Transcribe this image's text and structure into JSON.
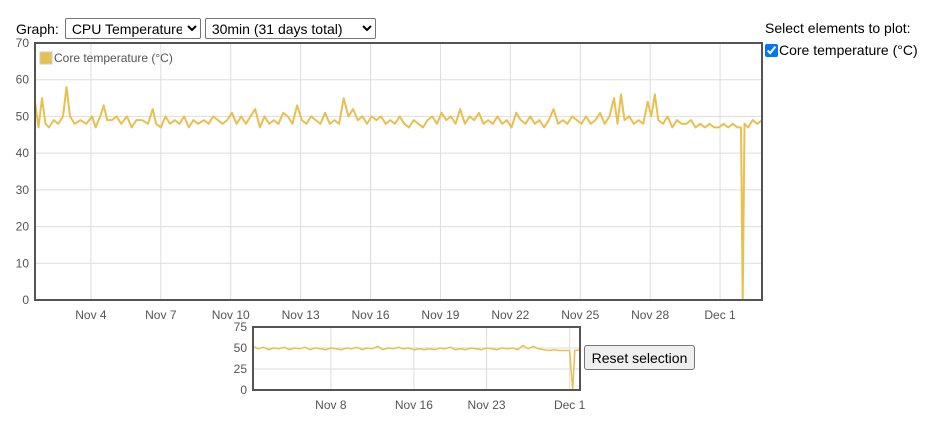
{
  "controls": {
    "graph_label": "Graph:",
    "graph_options": [
      "CPU Temperature"
    ],
    "graph_selected": "CPU Temperature",
    "range_options": [
      "30min (31 days total)"
    ],
    "range_selected": "30min (31 days total)"
  },
  "side_panel": {
    "title": "Select elements to plot:",
    "items": [
      {
        "label": "Core temperature (°C)",
        "checked": true
      }
    ]
  },
  "reset_button": "Reset selection",
  "colors": {
    "series": "#e8c050",
    "grid": "#dddddd",
    "frame": "#545454"
  },
  "chart_data": [
    {
      "type": "line",
      "role": "main",
      "series": [
        {
          "name": "Core temperature (°C)"
        }
      ],
      "legend": "top-left",
      "grid": true,
      "x_range_days": [
        1.6,
        32.8
      ],
      "ylim": [
        0,
        70
      ],
      "yticks": [
        0,
        10,
        20,
        30,
        40,
        50,
        60,
        70
      ],
      "xticks": [
        {
          "label": "Nov 4",
          "day": 4
        },
        {
          "label": "Nov 7",
          "day": 7
        },
        {
          "label": "Nov 10",
          "day": 10
        },
        {
          "label": "Nov 13",
          "day": 13
        },
        {
          "label": "Nov 16",
          "day": 16
        },
        {
          "label": "Nov 19",
          "day": 19
        },
        {
          "label": "Nov 22",
          "day": 22
        },
        {
          "label": "Nov 25",
          "day": 25
        },
        {
          "label": "Nov 28",
          "day": 28
        },
        {
          "label": "Dec 1",
          "day": 31
        }
      ],
      "points": [
        [
          1.6,
          54
        ],
        [
          1.75,
          47
        ],
        [
          1.9,
          55
        ],
        [
          2.05,
          48
        ],
        [
          2.2,
          47
        ],
        [
          2.4,
          49
        ],
        [
          2.6,
          48
        ],
        [
          2.8,
          50
        ],
        [
          2.95,
          58
        ],
        [
          3.1,
          50
        ],
        [
          3.3,
          48
        ],
        [
          3.55,
          49
        ],
        [
          3.8,
          48
        ],
        [
          4.05,
          50
        ],
        [
          4.2,
          47
        ],
        [
          4.4,
          50
        ],
        [
          4.55,
          53
        ],
        [
          4.7,
          49
        ],
        [
          4.9,
          49
        ],
        [
          5.1,
          50
        ],
        [
          5.3,
          48
        ],
        [
          5.55,
          50
        ],
        [
          5.75,
          47
        ],
        [
          5.95,
          49
        ],
        [
          6.2,
          49
        ],
        [
          6.45,
          48
        ],
        [
          6.65,
          52
        ],
        [
          6.8,
          48
        ],
        [
          7.0,
          47
        ],
        [
          7.2,
          50
        ],
        [
          7.4,
          48
        ],
        [
          7.6,
          49
        ],
        [
          7.8,
          48
        ],
        [
          8.0,
          50
        ],
        [
          8.2,
          47
        ],
        [
          8.4,
          49
        ],
        [
          8.6,
          48
        ],
        [
          8.85,
          49
        ],
        [
          9.05,
          48
        ],
        [
          9.25,
          50
        ],
        [
          9.45,
          49
        ],
        [
          9.65,
          48
        ],
        [
          9.85,
          49
        ],
        [
          10.05,
          51
        ],
        [
          10.25,
          48
        ],
        [
          10.45,
          50
        ],
        [
          10.65,
          48
        ],
        [
          10.85,
          50
        ],
        [
          11.05,
          52
        ],
        [
          11.25,
          47
        ],
        [
          11.45,
          50
        ],
        [
          11.65,
          48
        ],
        [
          11.85,
          49
        ],
        [
          12.05,
          48
        ],
        [
          12.25,
          51
        ],
        [
          12.45,
          50
        ],
        [
          12.65,
          48
        ],
        [
          12.85,
          53
        ],
        [
          13.05,
          49
        ],
        [
          13.25,
          48
        ],
        [
          13.45,
          50
        ],
        [
          13.65,
          49
        ],
        [
          13.85,
          48
        ],
        [
          14.05,
          51
        ],
        [
          14.25,
          48
        ],
        [
          14.45,
          49
        ],
        [
          14.65,
          48
        ],
        [
          14.85,
          55
        ],
        [
          15.05,
          50
        ],
        [
          15.25,
          52
        ],
        [
          15.45,
          49
        ],
        [
          15.65,
          50
        ],
        [
          15.85,
          48
        ],
        [
          16.05,
          50
        ],
        [
          16.25,
          49
        ],
        [
          16.45,
          50
        ],
        [
          16.65,
          48
        ],
        [
          16.85,
          49
        ],
        [
          17.05,
          48
        ],
        [
          17.25,
          50
        ],
        [
          17.45,
          48
        ],
        [
          17.65,
          47
        ],
        [
          17.85,
          49
        ],
        [
          18.05,
          48
        ],
        [
          18.25,
          47
        ],
        [
          18.45,
          49
        ],
        [
          18.65,
          50
        ],
        [
          18.85,
          48
        ],
        [
          19.05,
          51
        ],
        [
          19.25,
          49
        ],
        [
          19.45,
          50
        ],
        [
          19.65,
          48
        ],
        [
          19.85,
          52
        ],
        [
          20.05,
          48
        ],
        [
          20.25,
          50
        ],
        [
          20.45,
          49
        ],
        [
          20.65,
          51
        ],
        [
          20.85,
          48
        ],
        [
          21.05,
          49
        ],
        [
          21.25,
          48
        ],
        [
          21.45,
          50
        ],
        [
          21.65,
          48
        ],
        [
          21.85,
          49
        ],
        [
          22.05,
          47
        ],
        [
          22.25,
          51
        ],
        [
          22.45,
          49
        ],
        [
          22.65,
          48
        ],
        [
          22.85,
          50
        ],
        [
          23.05,
          48
        ],
        [
          23.25,
          49
        ],
        [
          23.45,
          47
        ],
        [
          23.65,
          49
        ],
        [
          23.85,
          52
        ],
        [
          24.05,
          48
        ],
        [
          24.25,
          49
        ],
        [
          24.45,
          48
        ],
        [
          24.65,
          50
        ],
        [
          24.85,
          49
        ],
        [
          25.05,
          48
        ],
        [
          25.25,
          50
        ],
        [
          25.45,
          48
        ],
        [
          25.65,
          49
        ],
        [
          25.85,
          51
        ],
        [
          26.05,
          48
        ],
        [
          26.25,
          50
        ],
        [
          26.45,
          55
        ],
        [
          26.6,
          48
        ],
        [
          26.75,
          56
        ],
        [
          26.9,
          49
        ],
        [
          27.1,
          50
        ],
        [
          27.3,
          48
        ],
        [
          27.5,
          49
        ],
        [
          27.7,
          48
        ],
        [
          27.9,
          54
        ],
        [
          28.05,
          50
        ],
        [
          28.2,
          56
        ],
        [
          28.35,
          49
        ],
        [
          28.55,
          48
        ],
        [
          28.75,
          50
        ],
        [
          28.95,
          47
        ],
        [
          29.15,
          49
        ],
        [
          29.35,
          48
        ],
        [
          29.55,
          48
        ],
        [
          29.75,
          49
        ],
        [
          29.95,
          47
        ],
        [
          30.15,
          48
        ],
        [
          30.35,
          47
        ],
        [
          30.55,
          48
        ],
        [
          30.75,
          47
        ],
        [
          30.95,
          47
        ],
        [
          31.15,
          48
        ],
        [
          31.35,
          47
        ],
        [
          31.55,
          48
        ],
        [
          31.75,
          47
        ],
        [
          31.9,
          47
        ],
        [
          31.97,
          0
        ],
        [
          32.05,
          48
        ],
        [
          32.2,
          47
        ],
        [
          32.4,
          49
        ],
        [
          32.6,
          48
        ],
        [
          32.8,
          49
        ]
      ]
    },
    {
      "type": "line",
      "role": "overview",
      "series": [
        {
          "name": "Core temperature (°C)"
        }
      ],
      "grid": true,
      "x_range_days": [
        0.5,
        32.0
      ],
      "ylim": [
        0,
        75
      ],
      "yticks": [
        0,
        25,
        50,
        75
      ],
      "xticks": [
        {
          "label": "Nov 8",
          "day": 8
        },
        {
          "label": "Nov 16",
          "day": 16
        },
        {
          "label": "Nov 23",
          "day": 23
        },
        {
          "label": "Dec 1",
          "day": 31
        }
      ],
      "points": [
        [
          0.5,
          52
        ],
        [
          1.0,
          49
        ],
        [
          1.5,
          51
        ],
        [
          2.0,
          48
        ],
        [
          2.5,
          50
        ],
        [
          3.0,
          49
        ],
        [
          3.5,
          51
        ],
        [
          4.0,
          48
        ],
        [
          4.5,
          50
        ],
        [
          5.0,
          49
        ],
        [
          5.5,
          51
        ],
        [
          6.0,
          48
        ],
        [
          6.5,
          50
        ],
        [
          7.0,
          49
        ],
        [
          7.5,
          48
        ],
        [
          8.0,
          50
        ],
        [
          8.5,
          49
        ],
        [
          9.0,
          48
        ],
        [
          9.5,
          50
        ],
        [
          10.0,
          49
        ],
        [
          10.5,
          51
        ],
        [
          11.0,
          48
        ],
        [
          11.5,
          50
        ],
        [
          12.0,
          49
        ],
        [
          12.5,
          52
        ],
        [
          13.0,
          48
        ],
        [
          13.5,
          50
        ],
        [
          14.0,
          49
        ],
        [
          14.5,
          51
        ],
        [
          15.0,
          49
        ],
        [
          15.5,
          50
        ],
        [
          16.0,
          48
        ],
        [
          16.5,
          49
        ],
        [
          17.0,
          48
        ],
        [
          17.5,
          49
        ],
        [
          18.0,
          48
        ],
        [
          18.5,
          50
        ],
        [
          19.0,
          49
        ],
        [
          19.5,
          51
        ],
        [
          20.0,
          48
        ],
        [
          20.5,
          49
        ],
        [
          21.0,
          48
        ],
        [
          21.5,
          50
        ],
        [
          22.0,
          49
        ],
        [
          22.5,
          48
        ],
        [
          23.0,
          50
        ],
        [
          23.5,
          49
        ],
        [
          24.0,
          48
        ],
        [
          24.5,
          50
        ],
        [
          25.0,
          49
        ],
        [
          25.5,
          50
        ],
        [
          26.0,
          48
        ],
        [
          26.5,
          53
        ],
        [
          27.0,
          49
        ],
        [
          27.5,
          52
        ],
        [
          28.0,
          49
        ],
        [
          28.5,
          48
        ],
        [
          29.0,
          47
        ],
        [
          29.5,
          48
        ],
        [
          30.0,
          47
        ],
        [
          30.5,
          47
        ],
        [
          31.0,
          47
        ],
        [
          31.3,
          0
        ],
        [
          31.5,
          47
        ],
        [
          32.0,
          48
        ]
      ]
    }
  ]
}
